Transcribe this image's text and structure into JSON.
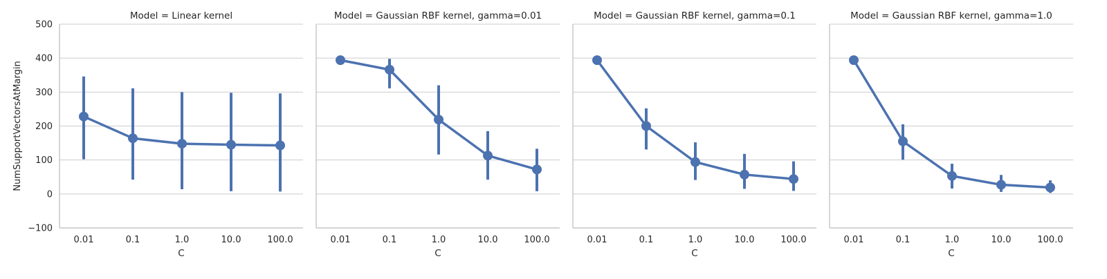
{
  "chart_data": {
    "type": "line",
    "ylabel": "NumSupportVectorsAtMargin",
    "xlabel": "C",
    "categories": [
      "0.01",
      "0.1",
      "1.0",
      "10.0",
      "100.0"
    ],
    "ylim": [
      -100,
      500
    ],
    "yticks": [
      -100,
      0,
      100,
      200,
      300,
      400,
      500
    ],
    "grid": "horizontal",
    "color": "#4c72b0",
    "panels": [
      {
        "title": "Model = Linear kernel",
        "values": [
          228,
          164,
          148,
          145,
          143
        ],
        "err_low": [
          102,
          42,
          14,
          8,
          7
        ],
        "err_high": [
          346,
          311,
          300,
          298,
          296
        ]
      },
      {
        "title": "Model = Gaussian RBF kernel, gamma=0.01",
        "values": [
          394,
          366,
          219,
          113,
          72
        ],
        "err_low": [
          394,
          311,
          116,
          42,
          8
        ],
        "err_high": [
          394,
          398,
          320,
          185,
          133
        ]
      },
      {
        "title": "Model = Gaussian RBF kernel, gamma=0.1",
        "values": [
          394,
          200,
          94,
          57,
          44
        ],
        "err_low": [
          394,
          131,
          41,
          15,
          9
        ],
        "err_high": [
          394,
          252,
          152,
          118,
          96
        ]
      },
      {
        "title": "Model = Gaussian RBF kernel, gamma=1.0",
        "values": [
          394,
          155,
          53,
          27,
          19
        ],
        "err_low": [
          394,
          101,
          16,
          6,
          3
        ],
        "err_high": [
          394,
          205,
          89,
          56,
          40
        ]
      }
    ]
  }
}
